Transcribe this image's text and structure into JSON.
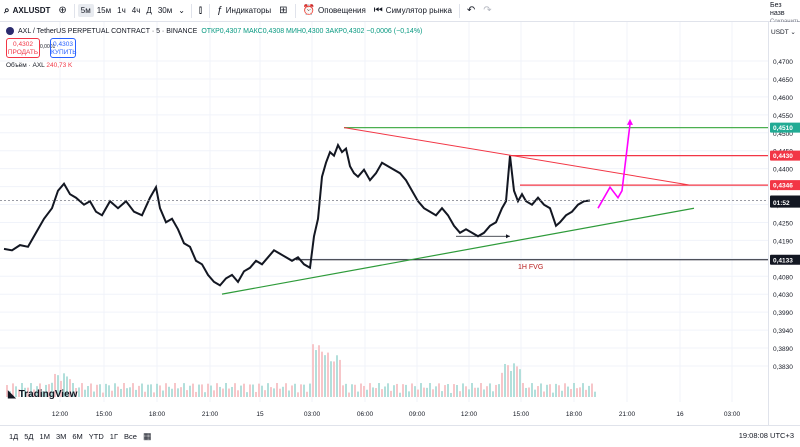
{
  "toolbar": {
    "symbol": "AXLUSDT",
    "timeframes": [
      "5м",
      "15м",
      "1ч",
      "4ч",
      "Д",
      "30м"
    ],
    "active_timeframe": "5м",
    "indicators_label": "Индикаторы",
    "alerts_label": "Оповещения",
    "replay_label": "Симулятор рынка",
    "account_label": "Без назв",
    "account_sub": "Сохранить"
  },
  "legend": {
    "title": "AXL / TetherUS PERPETUAL CONTRACT · 5 · BINANCE",
    "ohlc": "ОТКР0,4307 МАКС0,4308 МИН0,4300 ЗАКР0,4302 −0,0006 (−0,14%)",
    "sell_price": "0,4302",
    "sell_label": "ПРОДАТЬ",
    "spread": "0,0001",
    "buy_price": "0,4303",
    "buy_label": "КУПИТЬ",
    "volume_label": "Объём · AXL",
    "volume_value": "240,73 K",
    "currency": "USDT"
  },
  "price_axis": {
    "ticks": [
      "0,4700",
      "0,4650",
      "0,4600",
      "0,4550",
      "0,4500",
      "0,4450",
      "0,4400",
      "0,4350",
      "0,4300",
      "0,4250",
      "0,4190",
      "0,4140",
      "0,4080",
      "0,4030",
      "0,3990",
      "0,3940",
      "0,3890",
      "0,3830"
    ],
    "labels": [
      {
        "text": "0,4510",
        "color": "#22ab94",
        "price": 0.451
      },
      {
        "text": "0,4430",
        "color": "#f23645",
        "price": 0.443
      },
      {
        "text": "0,4346",
        "color": "#f23645",
        "price": 0.4346
      },
      {
        "text": "0,4302",
        "color": "#131722",
        "price": 0.4302
      },
      {
        "text": "01:52",
        "color": "#131722",
        "price": 0.4296
      },
      {
        "text": "0,4133",
        "color": "#131722",
        "price": 0.4133
      }
    ]
  },
  "time_axis": [
    "12:00",
    "15:00",
    "18:00",
    "21:00",
    "15",
    "03:00",
    "06:00",
    "09:00",
    "12:00",
    "15:00",
    "18:00",
    "21:00",
    "16",
    "03:00"
  ],
  "annotations": {
    "fvg_label": "1H FVG"
  },
  "bottom": {
    "ranges": [
      "1Д",
      "5Д",
      "1М",
      "3М",
      "6М",
      "YTD",
      "1Г",
      "Все"
    ],
    "clock": "19:08:08 UTC+3"
  },
  "branding": "TradingView",
  "colors": {
    "up": "#089981",
    "down": "#f23645",
    "candle": "#131722",
    "green_line": "#2e9b3a",
    "red_line": "#f23645",
    "magenta": "#ff00ff"
  }
}
